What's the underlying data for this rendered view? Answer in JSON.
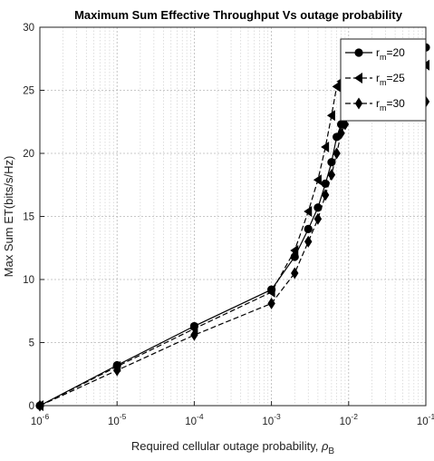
{
  "chart_data": {
    "type": "line",
    "title": "Maximum Sum Effective Throughput Vs outage probability",
    "xlabel": "Required cellular outage probability, ",
    "xlabel_symbol": "ρ",
    "xlabel_subscript": "B",
    "ylabel": "Max Sum ET(bits/s/Hz)",
    "x_scale": "log",
    "xlim": [
      1e-06,
      0.1
    ],
    "ylim": [
      0,
      30
    ],
    "x_tick_exponents": [
      "-6",
      "-5",
      "-4",
      "-3",
      "-2",
      "-1"
    ],
    "x_tick_base": "10",
    "y_ticks": [
      "0",
      "5",
      "10",
      "15",
      "20",
      "25",
      "30"
    ],
    "grid": true,
    "legend_position": "top-right",
    "series": [
      {
        "name_main": "r",
        "name_sub": "m",
        "name_rest": "=20",
        "marker": "circle",
        "dash": "solid",
        "color": "#000000",
        "x": [
          1e-06,
          1e-05,
          0.0001,
          0.001,
          0.002,
          0.003,
          0.004,
          0.005,
          0.006,
          0.007,
          0.008,
          0.009,
          0.01,
          0.1
        ],
        "y": [
          0,
          3.2,
          6.3,
          9.2,
          11.8,
          14.0,
          15.7,
          17.6,
          19.3,
          21.3,
          22.3,
          23.4,
          24.0,
          28.4
        ]
      },
      {
        "name_main": "r",
        "name_sub": "m",
        "name_rest": "=25",
        "marker": "triangle-left",
        "dash": "dashed",
        "color": "#000000",
        "x": [
          1e-06,
          1e-05,
          0.0001,
          0.001,
          0.002,
          0.003,
          0.004,
          0.005,
          0.006,
          0.007,
          0.008,
          0.009,
          0.01,
          0.1
        ],
        "y": [
          0,
          3.1,
          6.1,
          9.0,
          12.3,
          15.4,
          17.9,
          20.5,
          23.0,
          25.3,
          25.7,
          26.1,
          26.3,
          27.0
        ]
      },
      {
        "name_main": "r",
        "name_sub": "m",
        "name_rest": "=30",
        "marker": "diamond",
        "dash": "dashed",
        "color": "#000000",
        "x": [
          1e-06,
          1e-05,
          0.0001,
          0.001,
          0.002,
          0.003,
          0.004,
          0.005,
          0.006,
          0.007,
          0.008,
          0.009,
          0.01,
          0.1
        ],
        "y": [
          0,
          2.8,
          5.6,
          8.1,
          10.5,
          13.0,
          14.8,
          16.7,
          18.3,
          20.0,
          21.6,
          22.3,
          23.0,
          24.1
        ]
      }
    ]
  }
}
